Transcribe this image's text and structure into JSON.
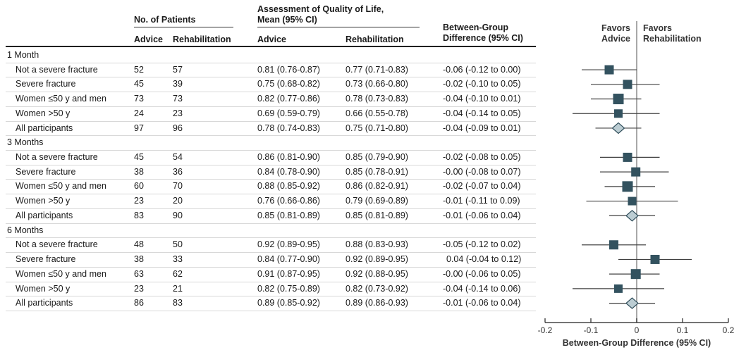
{
  "figure": {
    "header": {
      "patients_group_label": "No. of Patients",
      "qol_group_label": "Assessment of Quality of Life,\nMean (95% CI)",
      "between_group_label": "Between-Group\nDifference (95% CI)",
      "sub_advice": "Advice",
      "sub_rehab": "Rehabilitation"
    },
    "plot_header": {
      "favors_left": "Favors\nAdvice",
      "favors_right": "Favors\nRehabilitation"
    },
    "axis": {
      "xlabel": "Between-Group Difference (95% CI)",
      "tick_labels": [
        "-0.2",
        "-0.1",
        "0",
        "0.1",
        "0.2"
      ]
    }
  },
  "colors": {
    "square": "#33525f",
    "diamond_fill": "#bccdd3",
    "diamond_stroke": "#2e4c59",
    "zero_line": "#8c8c8c",
    "ci_line": "#404040",
    "axis": "#222222",
    "text": "#1a1a1a"
  },
  "chart_data": {
    "type": "forest",
    "xlabel": "Between-Group Difference (95% CI)",
    "xlim": [
      -0.2,
      0.2
    ],
    "ticks": [
      -0.2,
      -0.1,
      0,
      0.1,
      0.2
    ],
    "groups": [
      {
        "label": "1 Month",
        "rows": [
          {
            "label": "Not a severe fracture",
            "n_advice": "52",
            "n_rehab": "57",
            "qol_advice": "0.81 (0.76-0.87)",
            "qol_rehab": "0.77 (0.71-0.83)",
            "diff_text": "-0.06 (-0.12 to 0.00)",
            "estimate": -0.06,
            "ci": [
              -0.12,
              0.0
            ],
            "marker": "square",
            "marker_size": 13
          },
          {
            "label": "Severe fracture",
            "n_advice": "45",
            "n_rehab": "39",
            "qol_advice": "0.75 (0.68-0.82)",
            "qol_rehab": "0.73 (0.66-0.80)",
            "diff_text": "-0.02 (-0.10 to 0.05)",
            "estimate": -0.02,
            "ci": [
              -0.1,
              0.05
            ],
            "marker": "square",
            "marker_size": 13
          },
          {
            "label": "Women ≤50 y and men",
            "n_advice": "73",
            "n_rehab": "73",
            "qol_advice": "0.82 (0.77-0.86)",
            "qol_rehab": "0.78 (0.73-0.83)",
            "diff_text": "-0.04 (-0.10 to 0.01)",
            "estimate": -0.04,
            "ci": [
              -0.1,
              0.01
            ],
            "marker": "square",
            "marker_size": 15
          },
          {
            "label": "Women >50 y",
            "n_advice": "24",
            "n_rehab": "23",
            "qol_advice": "0.69 (0.59-0.79)",
            "qol_rehab": "0.66 (0.55-0.78)",
            "diff_text": "-0.04 (-0.14 to 0.05)",
            "estimate": -0.04,
            "ci": [
              -0.14,
              0.05
            ],
            "marker": "square",
            "marker_size": 12
          },
          {
            "label": "All participants",
            "n_advice": "97",
            "n_rehab": "96",
            "qol_advice": "0.78 (0.74-0.83)",
            "qol_rehab": "0.75 (0.71-0.80)",
            "diff_text": "-0.04 (-0.09 to 0.01)",
            "estimate": -0.04,
            "ci": [
              -0.09,
              0.01
            ],
            "marker": "diamond",
            "marker_size": 15
          }
        ]
      },
      {
        "label": "3 Months",
        "rows": [
          {
            "label": "Not a severe fracture",
            "n_advice": "45",
            "n_rehab": "54",
            "qol_advice": "0.86 (0.81-0.90)",
            "qol_rehab": "0.85 (0.79-0.90)",
            "diff_text": "-0.02 (-0.08 to 0.05)",
            "estimate": -0.02,
            "ci": [
              -0.08,
              0.05
            ],
            "marker": "square",
            "marker_size": 13
          },
          {
            "label": "Severe fracture",
            "n_advice": "38",
            "n_rehab": "36",
            "qol_advice": "0.84 (0.78-0.90)",
            "qol_rehab": "0.85 (0.78-0.91)",
            "diff_text": "-0.00 (-0.08 to 0.07)",
            "estimate": -0.002,
            "ci": [
              -0.08,
              0.07
            ],
            "marker": "square",
            "marker_size": 13
          },
          {
            "label": "Women ≤50 y and men",
            "n_advice": "60",
            "n_rehab": "70",
            "qol_advice": "0.88 (0.85-0.92)",
            "qol_rehab": "0.86 (0.82-0.91)",
            "diff_text": "-0.02 (-0.07 to 0.04)",
            "estimate": -0.02,
            "ci": [
              -0.07,
              0.04
            ],
            "marker": "square",
            "marker_size": 15
          },
          {
            "label": "Women >50 y",
            "n_advice": "23",
            "n_rehab": "20",
            "qol_advice": "0.76 (0.66-0.86)",
            "qol_rehab": "0.79 (0.69-0.89)",
            "diff_text": "-0.01 (-0.11 to 0.09)",
            "estimate": -0.01,
            "ci": [
              -0.11,
              0.09
            ],
            "marker": "square",
            "marker_size": 12
          },
          {
            "label": "All participants",
            "n_advice": "83",
            "n_rehab": "90",
            "qol_advice": "0.85 (0.81-0.89)",
            "qol_rehab": "0.85 (0.81-0.89)",
            "diff_text": "-0.01 (-0.06 to 0.04)",
            "estimate": -0.01,
            "ci": [
              -0.06,
              0.04
            ],
            "marker": "diamond",
            "marker_size": 15
          }
        ]
      },
      {
        "label": "6 Months",
        "rows": [
          {
            "label": "Not a severe fracture",
            "n_advice": "48",
            "n_rehab": "50",
            "qol_advice": "0.92 (0.89-0.95)",
            "qol_rehab": "0.88 (0.83-0.93)",
            "diff_text": "-0.05 (-0.12 to 0.02)",
            "estimate": -0.05,
            "ci": [
              -0.12,
              0.02
            ],
            "marker": "square",
            "marker_size": 13
          },
          {
            "label": "Severe fracture",
            "n_advice": "38",
            "n_rehab": "33",
            "qol_advice": "0.84 (0.77-0.90)",
            "qol_rehab": "0.92 (0.89-0.95)",
            "diff_text": "0.04 (-0.04 to 0.12)",
            "estimate": 0.04,
            "ci": [
              -0.04,
              0.12
            ],
            "marker": "square",
            "marker_size": 13
          },
          {
            "label": "Women ≤50 y and men",
            "n_advice": "63",
            "n_rehab": "62",
            "qol_advice": "0.91 (0.87-0.95)",
            "qol_rehab": "0.92 (0.88-0.95)",
            "diff_text": "-0.00 (-0.06 to 0.05)",
            "estimate": -0.002,
            "ci": [
              -0.06,
              0.05
            ],
            "marker": "square",
            "marker_size": 14
          },
          {
            "label": "Women >50 y",
            "n_advice": "23",
            "n_rehab": "21",
            "qol_advice": "0.82 (0.75-0.89)",
            "qol_rehab": "0.82 (0.73-0.92)",
            "diff_text": "-0.04 (-0.14 to 0.06)",
            "estimate": -0.04,
            "ci": [
              -0.14,
              0.06
            ],
            "marker": "square",
            "marker_size": 12
          },
          {
            "label": "All participants",
            "n_advice": "86",
            "n_rehab": "83",
            "qol_advice": "0.89 (0.85-0.92)",
            "qol_rehab": "0.89 (0.86-0.93)",
            "diff_text": "-0.01 (-0.06 to 0.04)",
            "estimate": -0.01,
            "ci": [
              -0.06,
              0.04
            ],
            "marker": "diamond",
            "marker_size": 15
          }
        ]
      }
    ]
  }
}
